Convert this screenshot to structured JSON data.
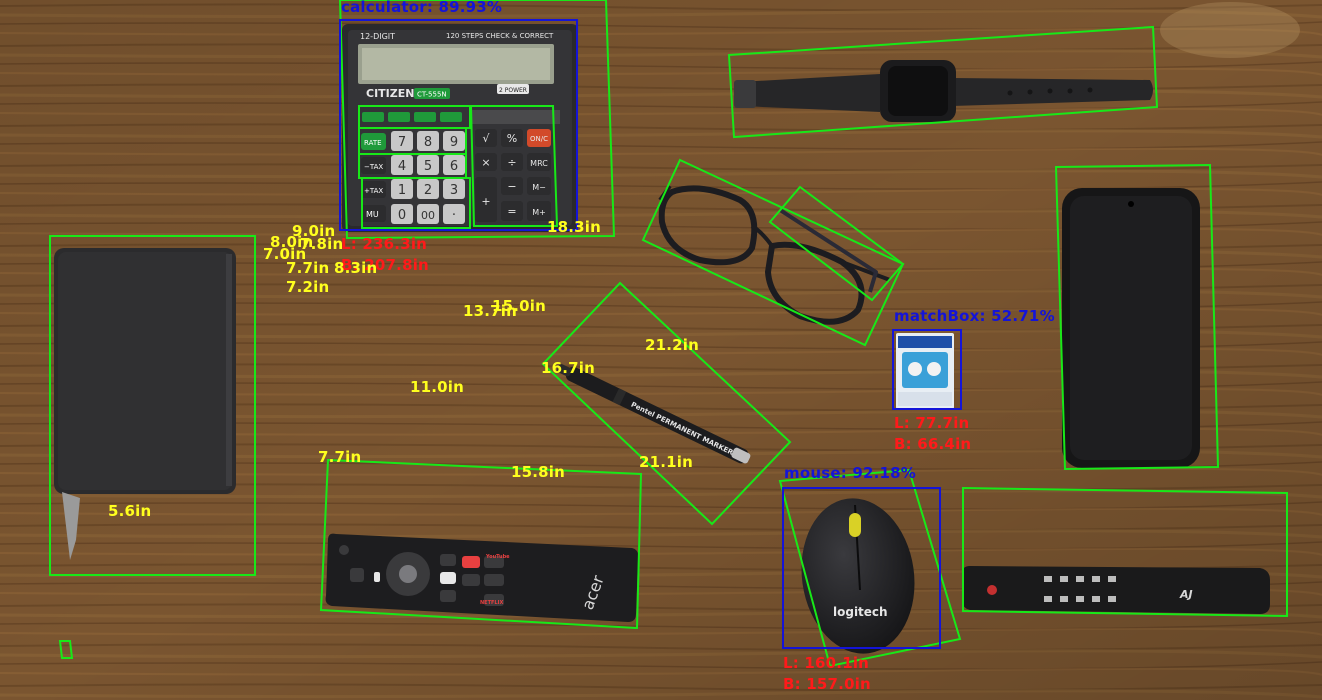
{
  "colors": {
    "box_green": "#18e818",
    "box_blue": "#1414d8",
    "label_yellow": "#ffff1e",
    "label_red": "#ff1a1a",
    "wood": "#7a5530"
  },
  "detections": {
    "calculator": "calculator: 89.93%",
    "matchbox": "matchBox: 52.71%",
    "mouse": "mouse: 92.18%"
  },
  "dims_red": {
    "calc_l": "L: 236.3in",
    "calc_b": "B: 207.8in",
    "match_l": "L: 77.7in",
    "match_b": "B: 66.4in",
    "mouse_l": "L: 160.1in",
    "mouse_b": "B: 157.0in"
  },
  "dims_yellow": {
    "calc_right": "18.3in",
    "cl_9_0": "9.0in",
    "cl_8_0": "8.0in",
    "cl_7_8": "7.8in",
    "cl_7_0": "7.0in",
    "cl_7_7": "7.7in",
    "cl_8_3": "8.3in",
    "cl_7_2": "7.2in",
    "c_13_7": "13.7in",
    "c_15_0": "15.0in",
    "pen_21_2": "21.2in",
    "pen_16_7": "16.7in",
    "c_11_0": "11.0in",
    "pen_21_1": "21.1in",
    "rem_7_7": "7.7in",
    "rem_15_8": "15.8in",
    "notebook_5_6": "5.6in"
  },
  "objects": {
    "calculator": {
      "model_top": "12-DIGIT",
      "steps": "120 STEPS CHECK & CORRECT",
      "brand": "CITIZEN",
      "model": "CT-555N",
      "power": "2 POWER",
      "keys": [
        "7",
        "8",
        "9",
        "4",
        "5",
        "6",
        "1",
        "2",
        "3",
        "0",
        "00",
        "·"
      ],
      "func_keys": [
        "√",
        "%",
        "ON/C",
        "×",
        "÷",
        "MRC",
        "−",
        "M−",
        "+",
        "=",
        "M+"
      ],
      "side_keys": [
        "RATE",
        "−TAX",
        "+TAX",
        "MU"
      ]
    },
    "marker_text": "Pentel PERMANENT MARKER",
    "mouse_brand": "logitech",
    "remote_brand": "acer",
    "netflix": "NETFLIX",
    "youtube": "YouTube",
    "small_remote_brand": "AJ"
  }
}
